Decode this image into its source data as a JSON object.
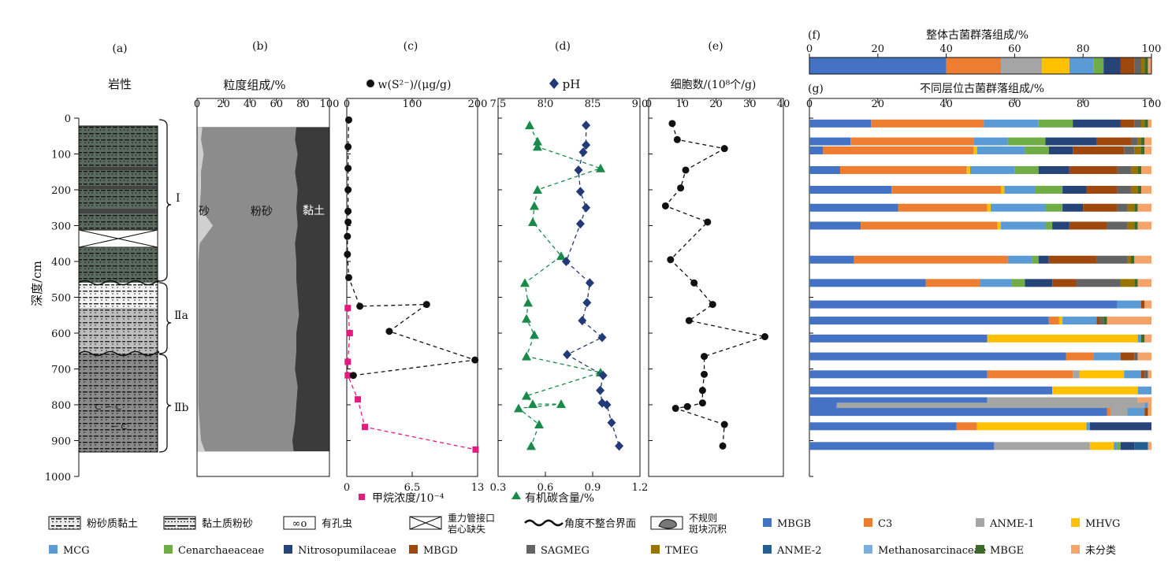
{
  "figure": {
    "panels": {
      "a": {
        "letter": "(a)",
        "title": "岩性"
      },
      "b": {
        "letter": "(b)",
        "title": "粒度组成/%",
        "ticks": [
          "0",
          "20",
          "40",
          "60",
          "80",
          "100"
        ],
        "labels": {
          "sand": "砂",
          "silt": "粉砂",
          "clay": "黏土"
        }
      },
      "c": {
        "letter": "(c)",
        "title": "w(S²⁻)/(μg/g)",
        "top_ticks": [
          "0",
          "100",
          "200"
        ],
        "bottom_ticks": [
          "0",
          "6.5",
          "13"
        ],
        "bottom_label": "甲烷浓度/10⁻⁴"
      },
      "d": {
        "letter": "(d)",
        "title": "pH",
        "top_ticks": [
          "7.5",
          "8.0",
          "8.5",
          "9.0"
        ],
        "bottom_ticks": [
          "0.3",
          "0.6",
          "0.9",
          "1.2"
        ],
        "bottom_label": "有机碳含量/%"
      },
      "e": {
        "letter": "(e)",
        "title": "细胞数/(10⁸个/g)",
        "top_ticks": [
          "0",
          "10",
          "20",
          "30",
          "40"
        ]
      },
      "f": {
        "letter": "(f)",
        "title": "整体古菌群落组成/%",
        "ticks": [
          "0",
          "20",
          "40",
          "60",
          "80",
          "100"
        ]
      },
      "g": {
        "letter": "(g)",
        "title": "不同层位古菌群落组成/%",
        "ticks": [
          "0",
          "20",
          "40",
          "60",
          "80",
          "100"
        ]
      }
    },
    "depth_axis": {
      "label": "深度/cm",
      "ticks": [
        "0",
        "100",
        "200",
        "300",
        "400",
        "500",
        "600",
        "700",
        "800",
        "900",
        "1000"
      ]
    },
    "units": {
      "I": "Ⅰ",
      "IIa": "Ⅱa",
      "IIb": "Ⅱb"
    },
    "legend": {
      "lithology": [
        {
          "key": "silty_clay",
          "label": "粉砂质黏土"
        },
        {
          "key": "clayey_silt",
          "label": "黏土质粉砂"
        },
        {
          "key": "foram",
          "label": "有孔虫"
        },
        {
          "key": "core_gap",
          "label": "重力管接口",
          "label2": "岩心缺失"
        },
        {
          "key": "unconformity",
          "label": "角度不整合界面"
        },
        {
          "key": "patch",
          "label": "不规则",
          "label2": "斑块沉积"
        }
      ],
      "taxa": [
        {
          "label": "MBGB",
          "color": "#4472c4"
        },
        {
          "label": "C3",
          "color": "#ed7d31"
        },
        {
          "label": "ANME-1",
          "color": "#a5a5a5"
        },
        {
          "label": "MHVG",
          "color": "#ffc000"
        },
        {
          "label": "MCG",
          "color": "#5b9bd5"
        },
        {
          "label": "Cenarchaeaceae",
          "color": "#70ad47"
        },
        {
          "label": "Nitrosopumilaceae",
          "color": "#264478"
        },
        {
          "label": "MBGD",
          "color": "#9e480e"
        },
        {
          "label": "SAGMEG",
          "color": "#636363"
        },
        {
          "label": "TMEG",
          "color": "#997300"
        },
        {
          "label": "ANME-2",
          "color": "#255e91"
        },
        {
          "label": "Methanosarcinaceae",
          "color": "#7cafdd"
        },
        {
          "label": "MBGE",
          "color": "#3b6b28"
        },
        {
          "label": "未分类",
          "color": "#f4a46b"
        }
      ]
    }
  },
  "chart_data": [
    {
      "type": "area",
      "panel": "b",
      "title": "粒度组成/%",
      "xlim": [
        0,
        100
      ],
      "ylim": [
        0,
        1000
      ],
      "ylabel": "深度/cm",
      "depth": [
        25,
        60,
        100,
        150,
        200,
        250,
        300,
        350,
        400,
        450,
        500,
        550,
        600,
        650,
        700,
        750,
        800,
        850,
        900,
        930
      ],
      "sand_cum": [
        4,
        3,
        5,
        3,
        3,
        2,
        12,
        2,
        1,
        1,
        1,
        1,
        1,
        1,
        1,
        1,
        1,
        2,
        3,
        6
      ],
      "silt_cum": [
        75,
        74,
        76,
        74,
        76,
        75,
        76,
        74,
        75,
        75,
        76,
        77,
        75,
        75,
        74,
        76,
        75,
        74,
        72,
        73
      ],
      "series": [
        {
          "name": "砂"
        },
        {
          "name": "粉砂"
        },
        {
          "name": "黏土"
        }
      ]
    },
    {
      "type": "scatter",
      "panel": "c",
      "series": [
        {
          "name": "w(S²⁻)/(μg/g)",
          "xlim": [
            0,
            200
          ],
          "style": "circle",
          "points": [
            [
              3,
              5
            ],
            [
              2,
              80
            ],
            [
              2,
              140
            ],
            [
              2,
              200
            ],
            [
              2,
              260
            ],
            [
              2,
              290
            ],
            [
              1,
              330
            ],
            [
              1,
              380
            ],
            [
              3,
              445
            ],
            [
              20,
              525
            ],
            [
              122,
              520
            ],
            [
              65,
              595
            ],
            [
              196,
              675
            ],
            [
              10,
              718
            ]
          ]
        },
        {
          "name": "甲烷浓度/10⁻⁴",
          "xlim": [
            0,
            13
          ],
          "style": "square",
          "points": [
            [
              0.1,
              530
            ],
            [
              0.3,
              600
            ],
            [
              0.1,
              680
            ],
            [
              0.1,
              718
            ],
            [
              1.1,
              785
            ],
            [
              1.8,
              862
            ],
            [
              12.8,
              925
            ]
          ]
        }
      ]
    },
    {
      "type": "scatter",
      "panel": "d",
      "series": [
        {
          "name": "pH",
          "xlim": [
            7.5,
            9.0
          ],
          "style": "diamond",
          "points": [
            [
              8.43,
              20
            ],
            [
              8.43,
              75
            ],
            [
              8.4,
              95
            ],
            [
              8.35,
              145
            ],
            [
              8.37,
              205
            ],
            [
              8.43,
              250
            ],
            [
              8.37,
              295
            ],
            [
              8.22,
              400
            ],
            [
              8.47,
              460
            ],
            [
              8.44,
              515
            ],
            [
              8.39,
              565
            ],
            [
              8.6,
              612
            ],
            [
              8.23,
              660
            ],
            [
              8.61,
              718
            ],
            [
              8.58,
              760
            ],
            [
              8.6,
              795
            ],
            [
              8.65,
              800
            ],
            [
              8.7,
              850
            ],
            [
              8.78,
              915
            ]
          ]
        },
        {
          "name": "有机碳含量/%",
          "xlim": [
            0.3,
            1.2
          ],
          "style": "triangle",
          "points": [
            [
              0.5,
              20
            ],
            [
              0.55,
              65
            ],
            [
              0.55,
              80
            ],
            [
              0.95,
              140
            ],
            [
              0.55,
              200
            ],
            [
              0.53,
              245
            ],
            [
              0.52,
              290
            ],
            [
              0.7,
              385
            ],
            [
              0.47,
              460
            ],
            [
              0.49,
              515
            ],
            [
              0.48,
              560
            ],
            [
              0.53,
              605
            ],
            [
              0.48,
              665
            ],
            [
              0.95,
              710
            ],
            [
              0.48,
              775
            ],
            [
              0.52,
              798
            ],
            [
              0.7,
              798
            ],
            [
              0.43,
              810
            ],
            [
              0.56,
              855
            ],
            [
              0.51,
              915
            ]
          ]
        }
      ]
    },
    {
      "type": "scatter",
      "panel": "e",
      "xlim": [
        0,
        40
      ],
      "series": [
        {
          "name": "细胞数/(10⁸个/g)",
          "style": "circle",
          "points": [
            [
              7,
              15
            ],
            [
              8.5,
              60
            ],
            [
              22.5,
              85
            ],
            [
              11,
              145
            ],
            [
              9.5,
              195
            ],
            [
              5,
              245
            ],
            [
              17.5,
              290
            ],
            [
              6.5,
              395
            ],
            [
              13.5,
              460
            ],
            [
              19,
              520
            ],
            [
              12,
              565
            ],
            [
              34.5,
              610
            ],
            [
              16.5,
              665
            ],
            [
              16.5,
              715
            ],
            [
              16,
              760
            ],
            [
              16,
              795
            ],
            [
              11.5,
              805
            ],
            [
              8,
              810
            ],
            [
              22.5,
              855
            ],
            [
              22,
              915
            ]
          ]
        }
      ]
    },
    {
      "type": "bar",
      "panel": "f",
      "orientation": "horizontal",
      "stacked": true,
      "xlim": [
        0,
        100
      ],
      "series_order": [
        "MBGB",
        "C3",
        "ANME-1",
        "MHVG",
        "MCG",
        "Cenarchaeaceae",
        "Nitrosopumilaceae",
        "MBGD",
        "SAGMEG",
        "TMEG",
        "ANME-2",
        "Methanosarcinaceae",
        "MBGE",
        "未分类"
      ],
      "values": [
        40,
        16,
        12,
        8,
        7,
        3,
        5,
        4,
        2,
        1,
        0,
        0,
        1,
        1
      ]
    },
    {
      "type": "bar",
      "panel": "g",
      "orientation": "horizontal",
      "stacked": true,
      "xlim": [
        0,
        100
      ],
      "series_order": [
        "MBGB",
        "C3",
        "ANME-1",
        "MHVG",
        "MCG",
        "Cenarchaeaceae",
        "Nitrosopumilaceae",
        "MBGD",
        "SAGMEG",
        "TMEG",
        "ANME-2",
        "Methanosarcinaceae",
        "MBGE",
        "未分类"
      ],
      "bars": [
        {
          "depth": 15,
          "values": [
            18,
            33,
            0,
            0,
            16,
            10,
            14,
            4,
            2,
            1,
            0,
            0,
            1,
            1
          ]
        },
        {
          "depth": 65,
          "values": [
            12,
            36,
            0,
            0,
            10,
            11,
            15,
            10,
            2,
            1,
            0,
            0,
            1,
            2
          ]
        },
        {
          "depth": 90,
          "values": [
            4,
            44,
            0,
            1,
            14,
            7,
            7,
            15,
            3,
            2,
            0,
            0,
            1,
            2
          ]
        },
        {
          "depth": 145,
          "values": [
            9,
            37,
            0,
            1,
            13,
            7,
            9,
            14,
            4,
            2,
            0,
            0,
            1,
            3
          ]
        },
        {
          "depth": 200,
          "values": [
            24,
            32,
            0,
            1,
            9,
            8,
            7,
            9,
            4,
            2,
            0,
            0,
            1,
            3
          ]
        },
        {
          "depth": 250,
          "values": [
            26,
            26,
            0,
            1,
            16,
            5,
            6,
            10,
            3,
            2,
            0,
            0,
            1,
            4
          ]
        },
        {
          "depth": 300,
          "values": [
            15,
            40,
            0,
            1,
            13,
            2,
            5,
            11,
            6,
            2,
            0,
            0,
            1,
            4
          ]
        },
        {
          "depth": 395,
          "values": [
            13,
            45,
            0,
            0,
            7,
            2,
            3,
            14,
            9,
            1,
            0,
            0,
            1,
            5
          ]
        },
        {
          "depth": 460,
          "values": [
            34,
            16,
            0,
            0,
            9,
            4,
            8,
            7,
            13,
            4,
            0,
            0,
            1,
            4
          ]
        },
        {
          "depth": 520,
          "values": [
            90,
            0,
            0,
            0,
            7,
            0,
            0,
            1,
            0,
            0,
            0,
            0,
            0,
            2
          ]
        },
        {
          "depth": 565,
          "values": [
            70,
            3,
            0,
            1,
            10,
            0,
            0,
            1,
            1,
            0,
            0,
            0,
            1,
            13
          ]
        },
        {
          "depth": 615,
          "values": [
            52,
            0,
            0,
            44,
            1,
            0,
            0,
            0,
            0,
            0,
            0,
            0,
            1,
            2
          ]
        },
        {
          "depth": 665,
          "values": [
            75,
            8,
            0,
            0,
            8,
            0,
            0,
            4,
            1,
            0,
            0,
            0,
            0,
            4
          ]
        },
        {
          "depth": 715,
          "values": [
            52,
            25,
            2,
            13,
            5,
            0,
            0,
            1,
            1,
            0,
            0,
            0,
            0,
            1
          ]
        },
        {
          "depth": 760,
          "values": [
            71,
            0,
            0,
            25,
            4,
            0,
            0,
            0,
            0,
            0,
            0,
            0,
            0,
            0
          ]
        },
        {
          "depth": 790,
          "values": [
            52,
            0,
            44,
            0,
            0,
            0,
            0,
            0,
            0,
            0,
            0,
            0,
            0,
            4
          ]
        },
        {
          "depth": 805,
          "values": [
            8,
            0,
            90,
            0,
            1,
            0,
            0,
            0,
            0,
            0,
            0,
            0,
            0,
            1
          ]
        },
        {
          "depth": 820,
          "values": [
            87,
            1,
            5,
            0,
            5,
            0,
            0,
            1,
            0,
            0,
            0,
            0,
            0,
            1
          ]
        },
        {
          "depth": 860,
          "values": [
            43,
            6,
            0,
            32,
            1,
            0,
            18,
            0,
            0,
            0,
            0,
            0,
            0,
            0
          ]
        },
        {
          "depth": 915,
          "values": [
            54,
            0,
            28,
            7,
            1,
            1,
            4,
            0,
            0,
            0,
            4,
            0,
            0,
            1
          ]
        }
      ]
    }
  ]
}
